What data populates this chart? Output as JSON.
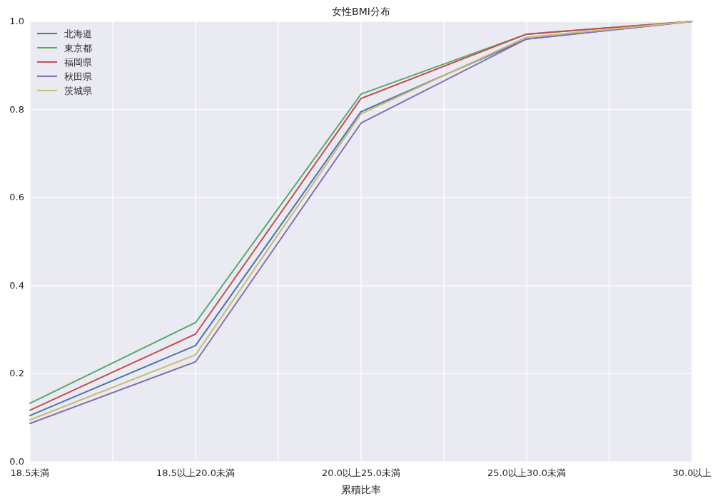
{
  "chart_data": {
    "type": "line",
    "title": "女性BMI分布",
    "xlabel": "累積比率",
    "categories": [
      "18.5未満",
      "18.5以上20.0未満",
      "20.0以上25.0未満",
      "25.0以上30.0未満",
      "30.0以上"
    ],
    "series": [
      {
        "name": "北海道",
        "color": "#4c72b0",
        "values": [
          0.105,
          0.264,
          0.795,
          0.96,
          1.0
        ]
      },
      {
        "name": "東京都",
        "color": "#55a868",
        "values": [
          0.133,
          0.316,
          0.835,
          0.971,
          1.0
        ]
      },
      {
        "name": "福岡県",
        "color": "#c44e52",
        "values": [
          0.117,
          0.29,
          0.825,
          0.971,
          1.0
        ]
      },
      {
        "name": "秋田県",
        "color": "#8172b2",
        "values": [
          0.087,
          0.227,
          0.769,
          0.96,
          1.0
        ]
      },
      {
        "name": "茨城県",
        "color": "#ccb974",
        "values": [
          0.095,
          0.243,
          0.79,
          0.964,
          1.0
        ]
      }
    ],
    "ylim": [
      0,
      1
    ],
    "yticks": [
      {
        "value": 0,
        "label": "0.0"
      },
      0.2,
      0.4,
      0.6,
      0.8,
      {
        "value": 1,
        "label": "1.0"
      }
    ],
    "grid": true,
    "legend": "top left"
  }
}
